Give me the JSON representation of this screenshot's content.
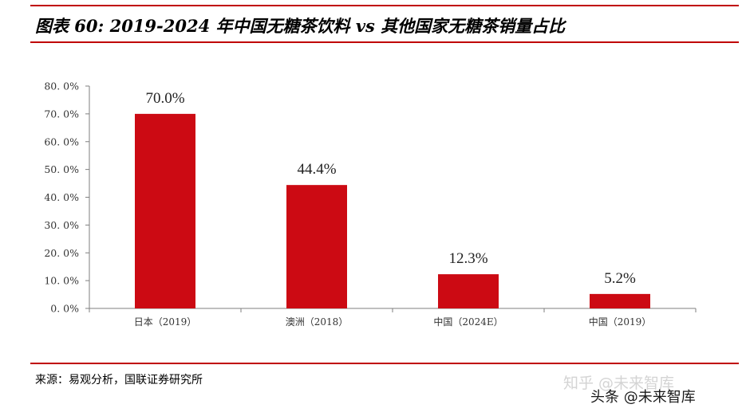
{
  "header": {
    "title": "图表 60: 2019-2024 年中国无糖茶饮料 vs 其他国家无糖茶销量占比"
  },
  "footer": {
    "source": "来源：易观分析，国联证券研究所",
    "watermark_zhihu": "知乎 @未来智库",
    "watermark_toutiao": "头条 @未来智库"
  },
  "colors": {
    "bar": "#cc0a13",
    "rule": "#c00000",
    "axis": "#7f7f7f"
  },
  "chart_data": {
    "type": "bar",
    "title": "",
    "xlabel": "",
    "ylabel": "",
    "categories": [
      "日本（2019）",
      "澳洲（2018）",
      "中国（2024E）",
      "中国（2019）"
    ],
    "values": [
      70.0,
      44.4,
      12.3,
      5.2
    ],
    "value_labels": [
      "70.0%",
      "44.4%",
      "12.3%",
      "5.2%"
    ],
    "ylim": [
      0,
      80
    ],
    "yticks": [
      0,
      10,
      20,
      30,
      40,
      50,
      60,
      70,
      80
    ],
    "ytick_labels": [
      "0. 0%",
      "10. 0%",
      "20. 0%",
      "30. 0%",
      "40. 0%",
      "50. 0%",
      "60. 0%",
      "70. 0%",
      "80. 0%"
    ],
    "grid": false,
    "legend": "none"
  }
}
